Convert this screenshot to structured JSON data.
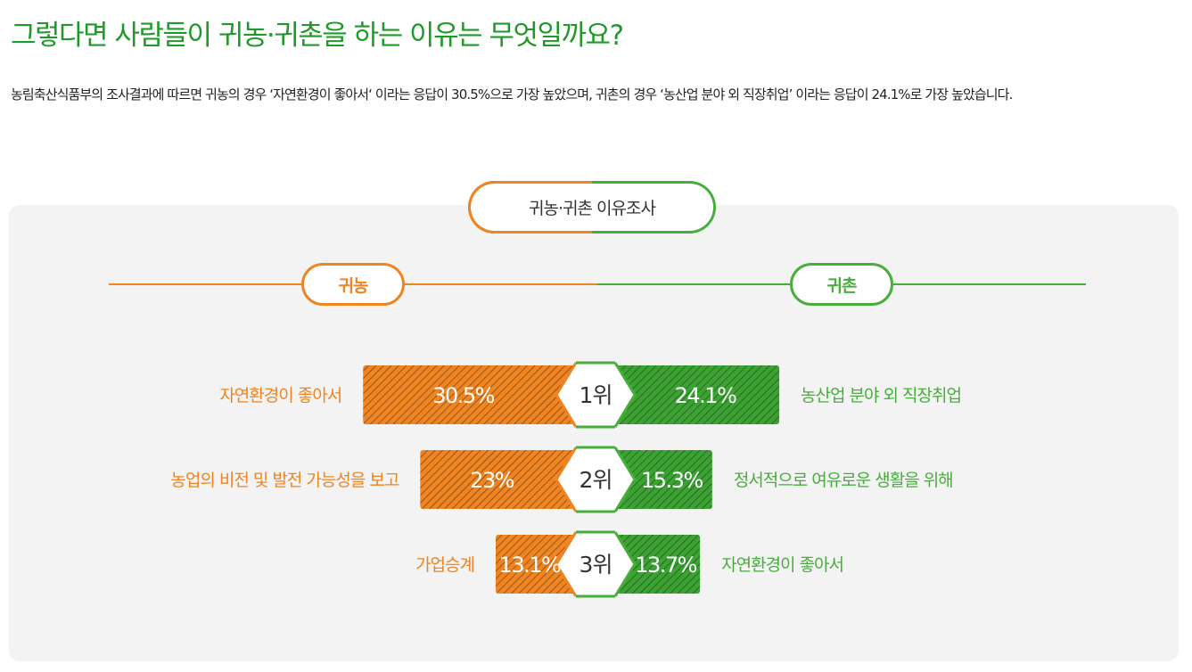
{
  "title": "그렇다면 사람들이 귀농·귀촌을 하는 이유는 무엇일까요?",
  "description": "농림축산식품부의 조사결과에 따르면 귀농의 경우 ‘자연환경이 좋아서‘ 이라는 응답이 30.5%으로 가장 높았으며, 귀촌의 경우 ‘농산업 분야 외 직장취업’ 이라는 응답이 24.1%로 가장 높았습니다.",
  "survey_label": "귀농·귀촌 이유조사",
  "left_header": "귀농",
  "right_header": "귀촌",
  "colors": {
    "left": "#ee8422",
    "right": "#47ad3b",
    "title": "#1f9a2a"
  },
  "chart_data": {
    "type": "bar",
    "orientation": "diverging-horizontal",
    "categories": [
      "1위",
      "2위",
      "3위"
    ],
    "series": [
      {
        "name": "귀농",
        "values": [
          30.5,
          23,
          13.1
        ],
        "value_labels": [
          "30.5%",
          "23%",
          "13.1%"
        ],
        "reasons": [
          "자연환경이 좋아서",
          "농업의 비전 및 발전 가능성을 보고",
          "가업승계"
        ]
      },
      {
        "name": "귀촌",
        "values": [
          24.1,
          15.3,
          13.7
        ],
        "value_labels": [
          "24.1%",
          "15.3%",
          "13.7%"
        ],
        "reasons": [
          "농산업 분야 외 직장취업",
          "정서적으로 여유로운 생활을 위해",
          "자연환경이 좋아서"
        ]
      }
    ]
  }
}
